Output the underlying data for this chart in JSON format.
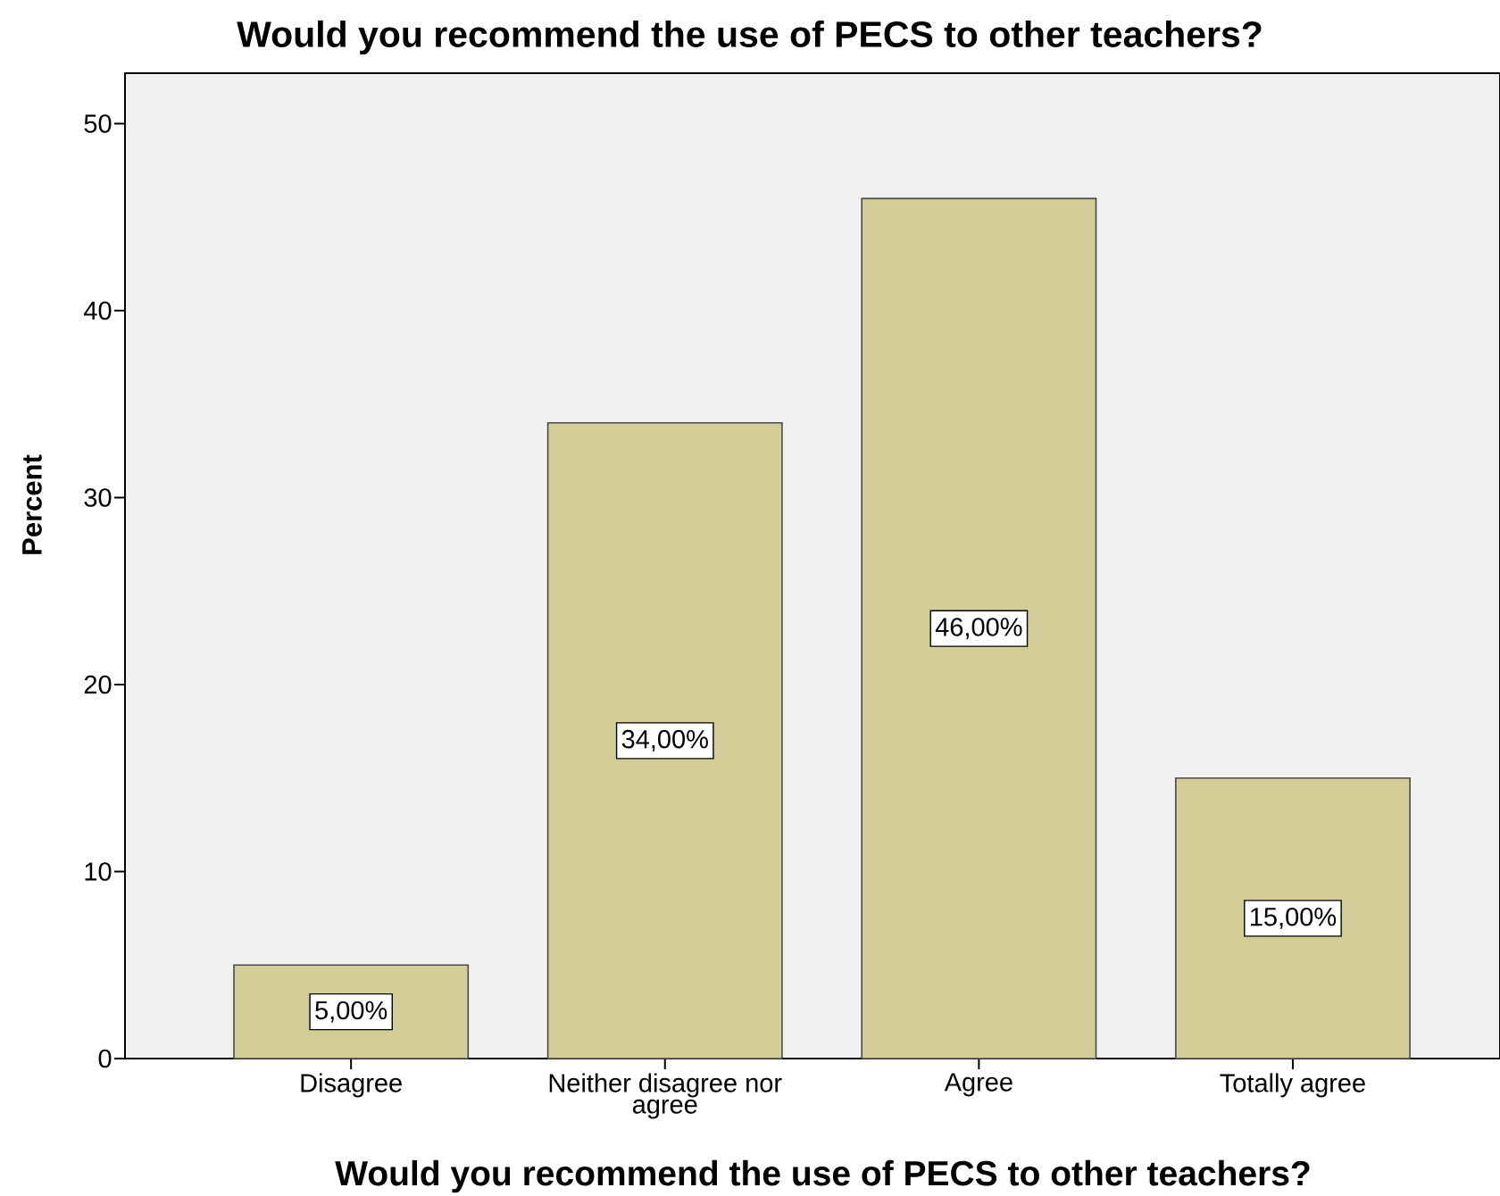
{
  "chart_data": {
    "type": "bar",
    "title": "Would you recommend the use of PECS to other teachers?",
    "xlabel": "Would you recommend the use of PECS to other teachers?",
    "ylabel": "Percent",
    "categories": [
      "Disagree",
      "Neither disagree nor agree",
      "Agree",
      "Totally agree"
    ],
    "values": [
      5,
      34,
      46,
      15
    ],
    "color": "#d3ce98",
    "value_labels": [
      "5,00%",
      "34,00%",
      "46,00%",
      "15,00%"
    ],
    "ylim": [
      0,
      52.7
    ],
    "yticks": [
      0,
      10,
      20,
      30,
      40,
      50
    ]
  }
}
